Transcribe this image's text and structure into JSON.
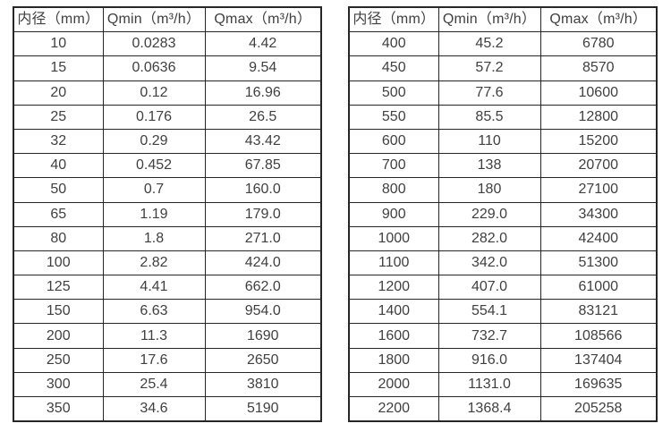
{
  "page": {
    "background": "#ffffff",
    "border_color": "#262626",
    "text_color": "#404040"
  },
  "tables": [
    {
      "name": "flow-range-table-small-diameters",
      "headers": [
        "内径（mm）",
        "Qmin（m³/h）",
        "Qmax（m³/h）"
      ],
      "rows": [
        [
          "10",
          "0.0283",
          "4.42"
        ],
        [
          "15",
          "0.0636",
          "9.54"
        ],
        [
          "20",
          "0.12",
          "16.96"
        ],
        [
          "25",
          "0.176",
          "26.5"
        ],
        [
          "32",
          "0.29",
          "43.42"
        ],
        [
          "40",
          "0.452",
          "67.85"
        ],
        [
          "50",
          "0.7",
          "160.0"
        ],
        [
          "65",
          "1.19",
          "179.0"
        ],
        [
          "80",
          "1.8",
          "271.0"
        ],
        [
          "100",
          "2.82",
          "424.0"
        ],
        [
          "125",
          "4.41",
          "662.0"
        ],
        [
          "150",
          "6.63",
          "954.0"
        ],
        [
          "200",
          "11.3",
          "1690"
        ],
        [
          "250",
          "17.6",
          "2650"
        ],
        [
          "300",
          "25.4",
          "3810"
        ],
        [
          "350",
          "34.6",
          "5190"
        ]
      ]
    },
    {
      "name": "flow-range-table-large-diameters",
      "headers": [
        "内径（mm）",
        "Qmin（m³/h）",
        "Qmax（m³/h）"
      ],
      "rows": [
        [
          "400",
          "45.2",
          "6780"
        ],
        [
          "450",
          "57.2",
          "8570"
        ],
        [
          "500",
          "77.6",
          "10600"
        ],
        [
          "550",
          "85.5",
          "12800"
        ],
        [
          "600",
          "110",
          "15200"
        ],
        [
          "700",
          "138",
          "20700"
        ],
        [
          "800",
          "180",
          "27100"
        ],
        [
          "900",
          "229.0",
          "34300"
        ],
        [
          "1000",
          "282.0",
          "42400"
        ],
        [
          "1100",
          "342.0",
          "51300"
        ],
        [
          "1200",
          "407.0",
          "61000"
        ],
        [
          "1400",
          "554.1",
          "83121"
        ],
        [
          "1600",
          "732.7",
          "108566"
        ],
        [
          "1800",
          "916.0",
          "137404"
        ],
        [
          "2000",
          "1131.0",
          "169635"
        ],
        [
          "2200",
          "1368.4",
          "205258"
        ]
      ]
    }
  ]
}
